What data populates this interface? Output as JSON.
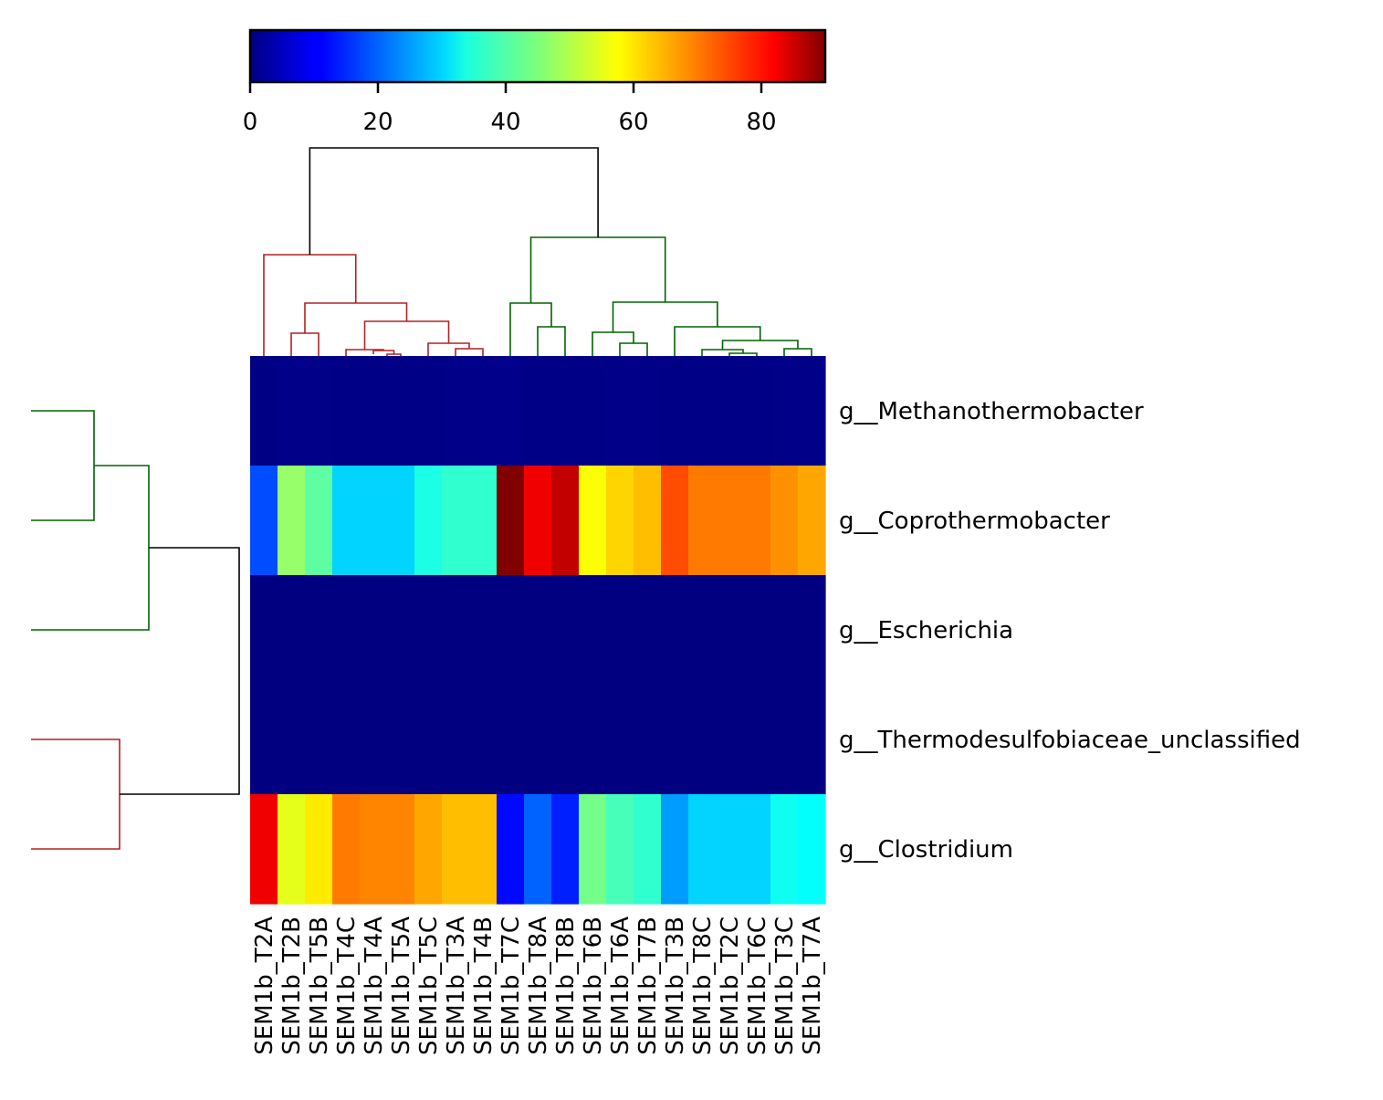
{
  "chart_data": {
    "type": "heatmap",
    "title": "",
    "xlabel": "",
    "ylabel": "",
    "columns": [
      "SEM1b_T2A",
      "SEM1b_T2B",
      "SEM1b_T5B",
      "SEM1b_T4C",
      "SEM1b_T4A",
      "SEM1b_T5A",
      "SEM1b_T5C",
      "SEM1b_T3A",
      "SEM1b_T4B",
      "SEM1b_T7C",
      "SEM1b_T8A",
      "SEM1b_T8B",
      "SEM1b_T6B",
      "SEM1b_T6A",
      "SEM1b_T7B",
      "SEM1b_T3B",
      "SEM1b_T8C",
      "SEM1b_T2C",
      "SEM1b_T6C",
      "SEM1b_T3C",
      "SEM1b_T7A"
    ],
    "rows": [
      "g__Methanothermobacter",
      "g__Coprothermobacter",
      "g__Escherichia",
      "g__Thermodesulfobiaceae_unclassified",
      "g__Clostridium"
    ],
    "values": [
      [
        0.5,
        0.8,
        0.8,
        0.6,
        0.6,
        0.6,
        0.7,
        0.8,
        1.0,
        0.9,
        0.6,
        0.6,
        0.7,
        0.8,
        0.8,
        0.6,
        0.7,
        0.7,
        0.7,
        0.8,
        0.8
      ],
      [
        18,
        47,
        42,
        30,
        30,
        30,
        36,
        38,
        38,
        90,
        80,
        84,
        56,
        60,
        62,
        72,
        68,
        68,
        68,
        66,
        64
      ],
      [
        0,
        0,
        0,
        0,
        0,
        0,
        0,
        0,
        0,
        0,
        0,
        0,
        0,
        0,
        0,
        0,
        0,
        0,
        0,
        0,
        0
      ],
      [
        0,
        0,
        0,
        0,
        0,
        0,
        0,
        0,
        0,
        0,
        0,
        0,
        0,
        0,
        0,
        0,
        0,
        0,
        0,
        0,
        0
      ],
      [
        80,
        54,
        58,
        68,
        67,
        67,
        64,
        62,
        62,
        12,
        20,
        14,
        44,
        40,
        38,
        25,
        30,
        30,
        30,
        35,
        34
      ]
    ],
    "colorbar": {
      "colormap": "jet",
      "range": [
        0,
        90
      ],
      "ticks": [
        0,
        20,
        40,
        60,
        80
      ],
      "tick_labels": [
        "0",
        "20",
        "40",
        "60",
        "80"
      ],
      "placement": "top"
    },
    "column_dendrogram": {
      "placement": "top",
      "cluster_colors": [
        "#b22222",
        "#006400"
      ],
      "root_color": "#000000"
    },
    "row_dendrogram": {
      "placement": "left",
      "cluster_colors": [
        "#006400",
        "#b22222"
      ],
      "root_color": "#000000"
    },
    "grid": false,
    "legend": "none"
  }
}
